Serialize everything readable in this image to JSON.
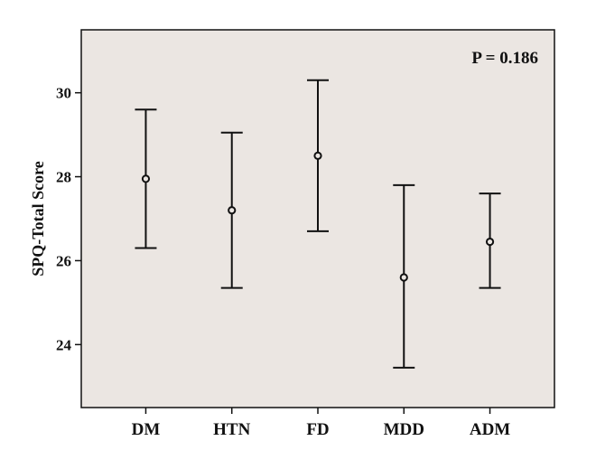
{
  "chart_data": {
    "type": "errorbar",
    "title": "",
    "xlabel": "",
    "ylabel": "SPQ-Total Score",
    "categories": [
      "DM",
      "HTN",
      "FD",
      "MDD",
      "ADM"
    ],
    "series": [
      {
        "mean": [
          27.95,
          27.2,
          28.5,
          25.6,
          26.45
        ],
        "lower": [
          26.3,
          25.35,
          26.7,
          23.45,
          25.35
        ],
        "upper": [
          29.6,
          29.05,
          30.3,
          27.8,
          27.6
        ]
      }
    ],
    "yticks": [
      24,
      26,
      28,
      30
    ],
    "ylim": [
      22.5,
      31.5
    ],
    "annotation": "P = 0.186",
    "annotation_position": "top-right",
    "grid": false,
    "colors": {
      "plot_background": "#ebe6e2",
      "ink": "#111111"
    }
  }
}
